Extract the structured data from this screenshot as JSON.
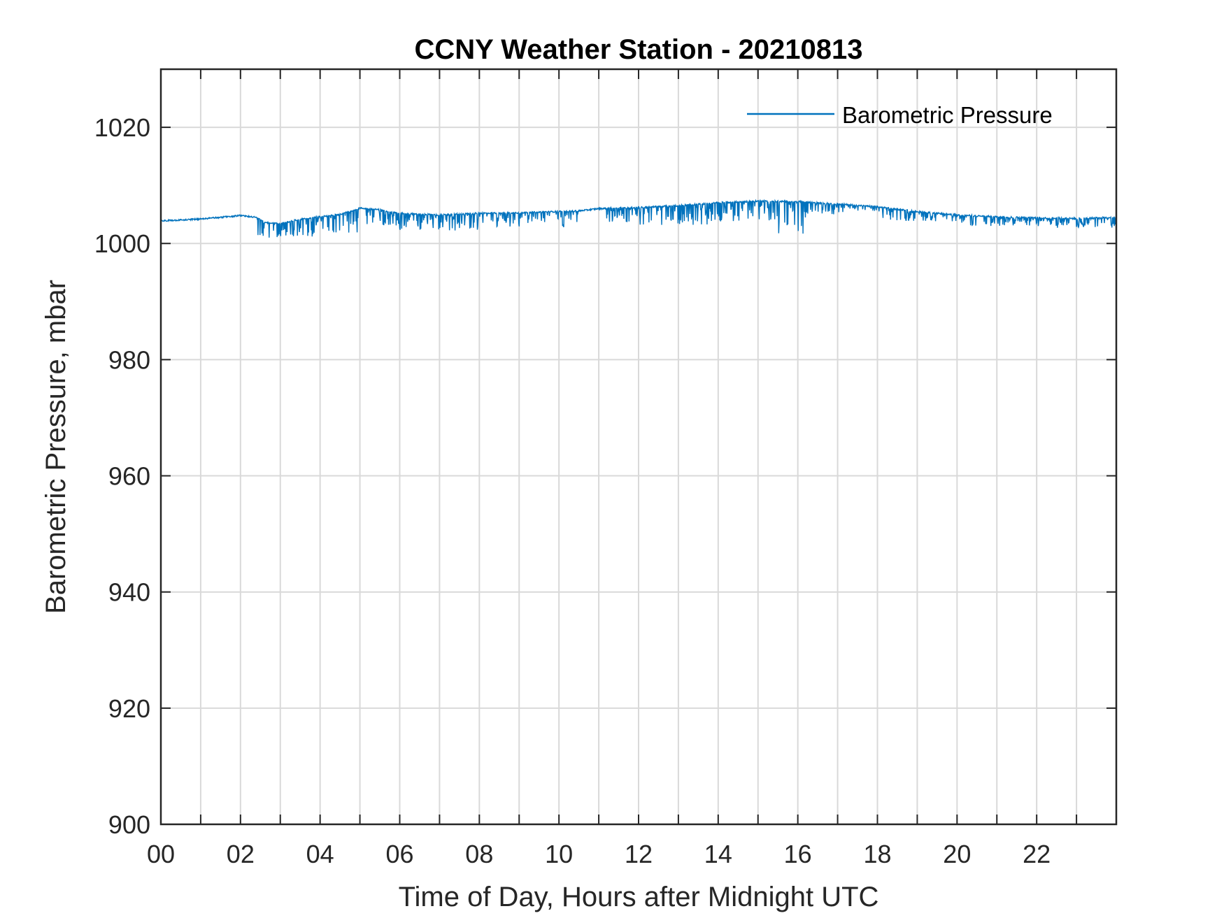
{
  "chart_data": {
    "type": "line",
    "title": "CCNY Weather Station - 20210813",
    "xlabel": "Time of Day, Hours after Midnight UTC",
    "ylabel": "Barometric Pressure, mbar",
    "xlim": [
      0,
      24
    ],
    "ylim": [
      900,
      1030
    ],
    "grid": true,
    "legend_position": "top-right",
    "x_ticks": [
      0,
      2,
      4,
      6,
      8,
      10,
      12,
      14,
      16,
      18,
      20,
      22
    ],
    "x_tick_labels": [
      "00",
      "02",
      "04",
      "06",
      "08",
      "10",
      "12",
      "14",
      "16",
      "18",
      "20",
      "22"
    ],
    "x_minor_ticks": [
      1,
      3,
      5,
      7,
      9,
      11,
      13,
      15,
      17,
      19,
      21,
      23
    ],
    "y_ticks": [
      900,
      920,
      940,
      960,
      980,
      1000,
      1020
    ],
    "y_tick_labels": [
      "900",
      "920",
      "940",
      "960",
      "980",
      "1000",
      "1020"
    ],
    "series": [
      {
        "name": "Barometric Pressure",
        "color": "#0072bd",
        "baseline": [
          [
            0.0,
            1003.9
          ],
          [
            1.0,
            1004.2
          ],
          [
            2.0,
            1004.8
          ],
          [
            2.4,
            1004.5
          ],
          [
            2.6,
            1003.6
          ],
          [
            3.0,
            1003.4
          ],
          [
            3.5,
            1004.2
          ],
          [
            4.0,
            1004.6
          ],
          [
            4.5,
            1005.0
          ],
          [
            5.0,
            1006.1
          ],
          [
            5.5,
            1005.8
          ],
          [
            6.0,
            1005.2
          ],
          [
            7.0,
            1004.9
          ],
          [
            8.0,
            1005.2
          ],
          [
            9.0,
            1005.3
          ],
          [
            10.0,
            1005.5
          ],
          [
            10.5,
            1005.6
          ],
          [
            11.0,
            1006.0
          ],
          [
            12.0,
            1006.2
          ],
          [
            13.0,
            1006.5
          ],
          [
            14.0,
            1007.0
          ],
          [
            15.0,
            1007.3
          ],
          [
            16.0,
            1007.2
          ],
          [
            17.0,
            1006.8
          ],
          [
            18.0,
            1006.3
          ],
          [
            19.0,
            1005.5
          ],
          [
            20.0,
            1004.9
          ],
          [
            21.0,
            1004.6
          ],
          [
            22.0,
            1004.4
          ],
          [
            23.0,
            1004.3
          ],
          [
            24.0,
            1004.5
          ]
        ],
        "spike_regions": [
          {
            "start": 2.4,
            "end": 3.0,
            "min": 1000.8
          },
          {
            "start": 3.0,
            "end": 4.0,
            "min": 1001.2
          },
          {
            "start": 4.0,
            "end": 5.0,
            "min": 1001.8
          },
          {
            "start": 5.0,
            "end": 6.0,
            "min": 1003.0
          },
          {
            "start": 6.0,
            "end": 8.0,
            "min": 1002.2
          },
          {
            "start": 8.0,
            "end": 10.5,
            "min": 1002.8
          },
          {
            "start": 11.2,
            "end": 12.0,
            "min": 1003.5
          },
          {
            "start": 12.0,
            "end": 14.0,
            "min": 1003.2
          },
          {
            "start": 14.0,
            "end": 15.5,
            "min": 1003.8
          },
          {
            "start": 15.5,
            "end": 16.2,
            "min": 1001.3
          },
          {
            "start": 16.2,
            "end": 18.0,
            "min": 1005.0
          },
          {
            "start": 18.0,
            "end": 20.0,
            "min": 1003.8
          },
          {
            "start": 20.0,
            "end": 22.0,
            "min": 1003.0
          },
          {
            "start": 22.0,
            "end": 24.0,
            "min": 1002.7
          }
        ]
      }
    ]
  }
}
